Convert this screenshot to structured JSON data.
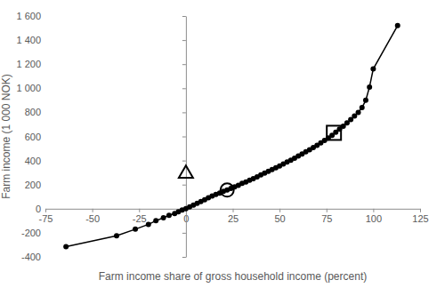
{
  "chart_data": {
    "type": "line",
    "x_label": "Farm income share of gross household income (percent)",
    "y_label": "Farm income (1 000 NOK)",
    "xlim": [
      -75,
      125
    ],
    "xticks": [
      -75,
      -50,
      -25,
      0,
      25,
      50,
      75,
      100,
      125
    ],
    "ylim": [
      -400,
      1600
    ],
    "yticks": [
      -400,
      -200,
      0,
      200,
      400,
      600,
      800,
      {
        "value": 1000,
        "label": "1 000"
      },
      {
        "value": 1200,
        "label": "1 200"
      },
      {
        "value": 1400,
        "label": "1 400"
      },
      {
        "value": 1600,
        "label": "1 600"
      }
    ],
    "grid": false,
    "series": [
      {
        "type": "line",
        "color": "#000000",
        "marker": "circle",
        "line_style": "solid",
        "x": [
          -64,
          -37,
          -27,
          -20,
          -16,
          -12,
          -9,
          -6,
          -4,
          -2,
          0,
          2,
          4,
          6,
          8,
          10,
          12,
          14,
          16,
          18,
          20,
          22,
          24,
          26,
          28,
          30,
          32,
          34,
          36,
          38,
          40,
          42,
          44,
          46,
          48,
          50,
          52,
          54,
          56,
          58,
          60,
          62,
          64,
          66,
          68,
          70,
          72,
          74,
          76,
          78,
          80,
          82,
          84,
          86,
          88,
          90,
          92,
          94,
          96,
          98,
          100,
          113
        ],
        "values": [
          -315,
          -225,
          -170,
          -130,
          -100,
          -75,
          -55,
          -40,
          -25,
          -10,
          0,
          15,
          30,
          45,
          60,
          75,
          90,
          105,
          118,
          130,
          145,
          155,
          168,
          182,
          195,
          210,
          222,
          237,
          250,
          265,
          280,
          295,
          310,
          325,
          340,
          355,
          372,
          388,
          403,
          420,
          437,
          455,
          472,
          490,
          508,
          527,
          546,
          566,
          587,
          610,
          635,
          660,
          685,
          712,
          740,
          770,
          800,
          840,
          900,
          1010,
          1160,
          1520
        ]
      },
      {
        "type": "scatter",
        "color": "#000000",
        "marker": "triangle-open",
        "x": [
          0
        ],
        "values": [
          290
        ]
      },
      {
        "type": "scatter",
        "color": "#000000",
        "marker": "circle-open",
        "x": [
          22
        ],
        "values": [
          155
        ]
      },
      {
        "type": "scatter",
        "color": "#000000",
        "marker": "square-open",
        "x": [
          79
        ],
        "values": [
          630
        ]
      }
    ]
  }
}
